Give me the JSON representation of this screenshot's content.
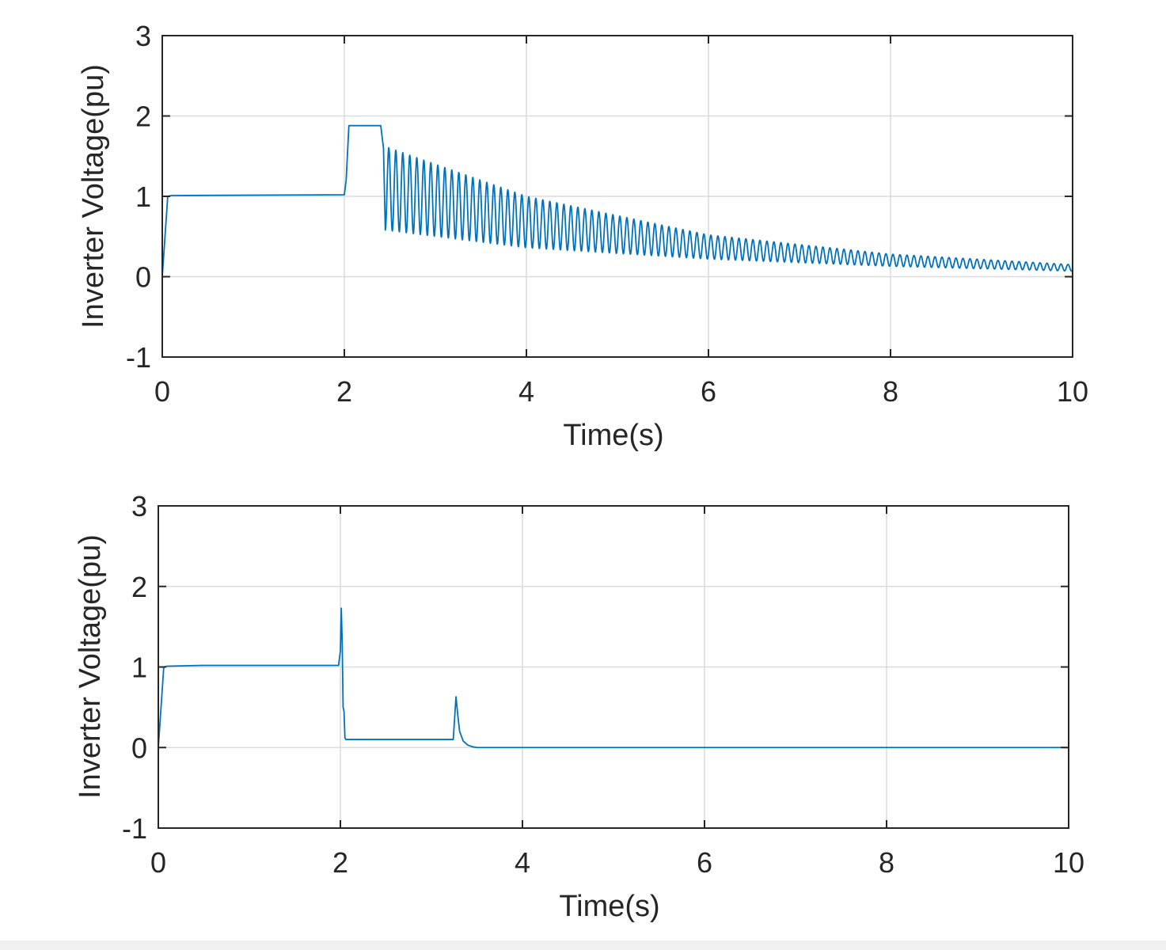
{
  "chart_data": [
    {
      "type": "line",
      "title": "",
      "xlabel": "Time(s)",
      "ylabel": "Inverter Voltage(pu)",
      "xlim": [
        0,
        10
      ],
      "ylim": [
        -1,
        3
      ],
      "xticks": [
        "0",
        "2",
        "4",
        "6",
        "8",
        "10"
      ],
      "yticks": [
        "-1",
        "0",
        "1",
        "2",
        "3"
      ],
      "grid": true,
      "legend": "none",
      "series": [
        {
          "color": "#0072BD",
          "description_points": {
            "x": [
              0,
              0.06,
              0.1,
              2.0,
              2.02,
              2.05,
              2.4,
              2.43,
              2.45
            ],
            "y": [
              0,
              1.0,
              1.01,
              1.02,
              1.2,
              1.88,
              1.88,
              1.6,
              0.58
            ]
          },
          "oscillation": {
            "t_start": 2.45,
            "t_end": 10.0,
            "frequency_hz": 13,
            "upper_envelope": {
              "x": [
                2.45,
                4.0,
                6.0,
                8.0,
                10.0
              ],
              "y": [
                1.62,
                1.0,
                0.52,
                0.28,
                0.15
              ]
            },
            "lower_envelope": {
              "x": [
                2.45,
                4.0,
                6.0,
                8.0,
                10.0
              ],
              "y": [
                0.58,
                0.36,
                0.22,
                0.13,
                0.07
              ]
            }
          }
        }
      ]
    },
    {
      "type": "line",
      "title": "",
      "xlabel": "Time(s)",
      "ylabel": "Inverter Voltage(pu)",
      "xlim": [
        0,
        10
      ],
      "ylim": [
        -1,
        3
      ],
      "xticks": [
        "0",
        "2",
        "4",
        "6",
        "8",
        "10"
      ],
      "yticks": [
        "-1",
        "0",
        "1",
        "2",
        "3"
      ],
      "grid": true,
      "legend": "none",
      "series": [
        {
          "color": "#0072BD",
          "x": [
            0,
            0.06,
            0.1,
            0.5,
            1.0,
            1.5,
            1.98,
            2.0,
            2.01,
            2.02,
            2.03,
            2.04,
            2.05,
            2.06,
            2.3,
            2.8,
            3.24,
            3.27,
            3.29,
            3.31,
            3.35,
            3.4,
            3.45,
            3.5,
            4.0,
            6.0,
            8.0,
            10.0
          ],
          "y": [
            0,
            1.0,
            1.01,
            1.02,
            1.02,
            1.02,
            1.02,
            1.2,
            1.73,
            1.3,
            0.5,
            0.45,
            0.12,
            0.1,
            0.1,
            0.1,
            0.1,
            0.63,
            0.4,
            0.2,
            0.08,
            0.03,
            0.01,
            0.0,
            0.0,
            0.0,
            0.0,
            0.0
          ]
        }
      ]
    }
  ]
}
